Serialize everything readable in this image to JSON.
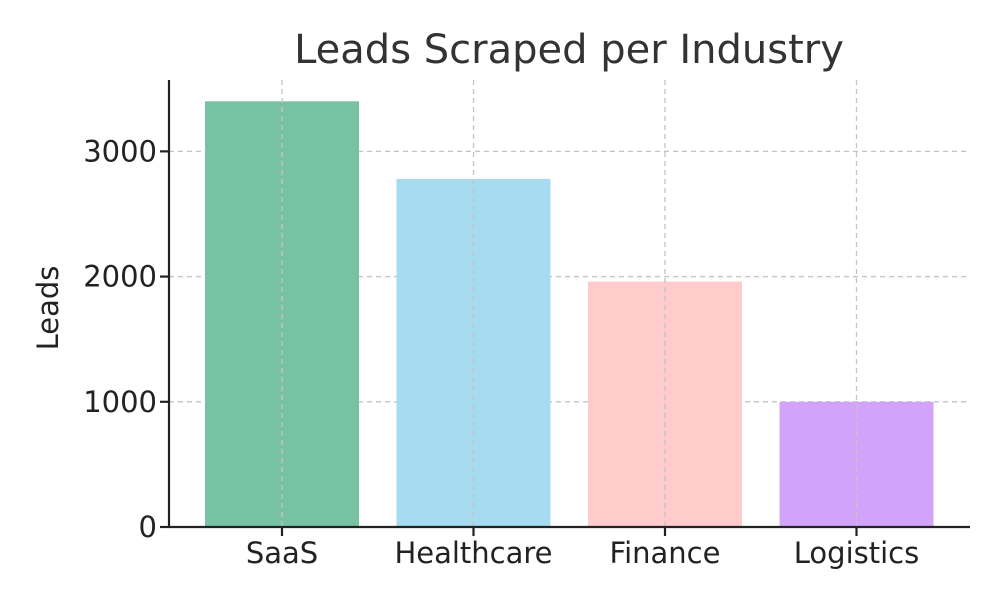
{
  "chart_data": {
    "type": "bar",
    "title": "Leads Scraped per Industry",
    "xlabel": "",
    "ylabel": "Leads",
    "categories": [
      "SaaS",
      "Healthcare",
      "Finance",
      "Logistics"
    ],
    "values": [
      3400,
      2780,
      1960,
      1000
    ],
    "colors": [
      "#78c2a4",
      "#a6dbf0",
      "#ffcbcb",
      "#d2a3f8"
    ],
    "yticks": [
      0,
      1000,
      2000,
      3000
    ],
    "ytick_labels": [
      "0",
      "1000",
      "2000",
      "3000"
    ],
    "ylim": [
      0,
      3570
    ],
    "grid": true,
    "legend": "none"
  }
}
